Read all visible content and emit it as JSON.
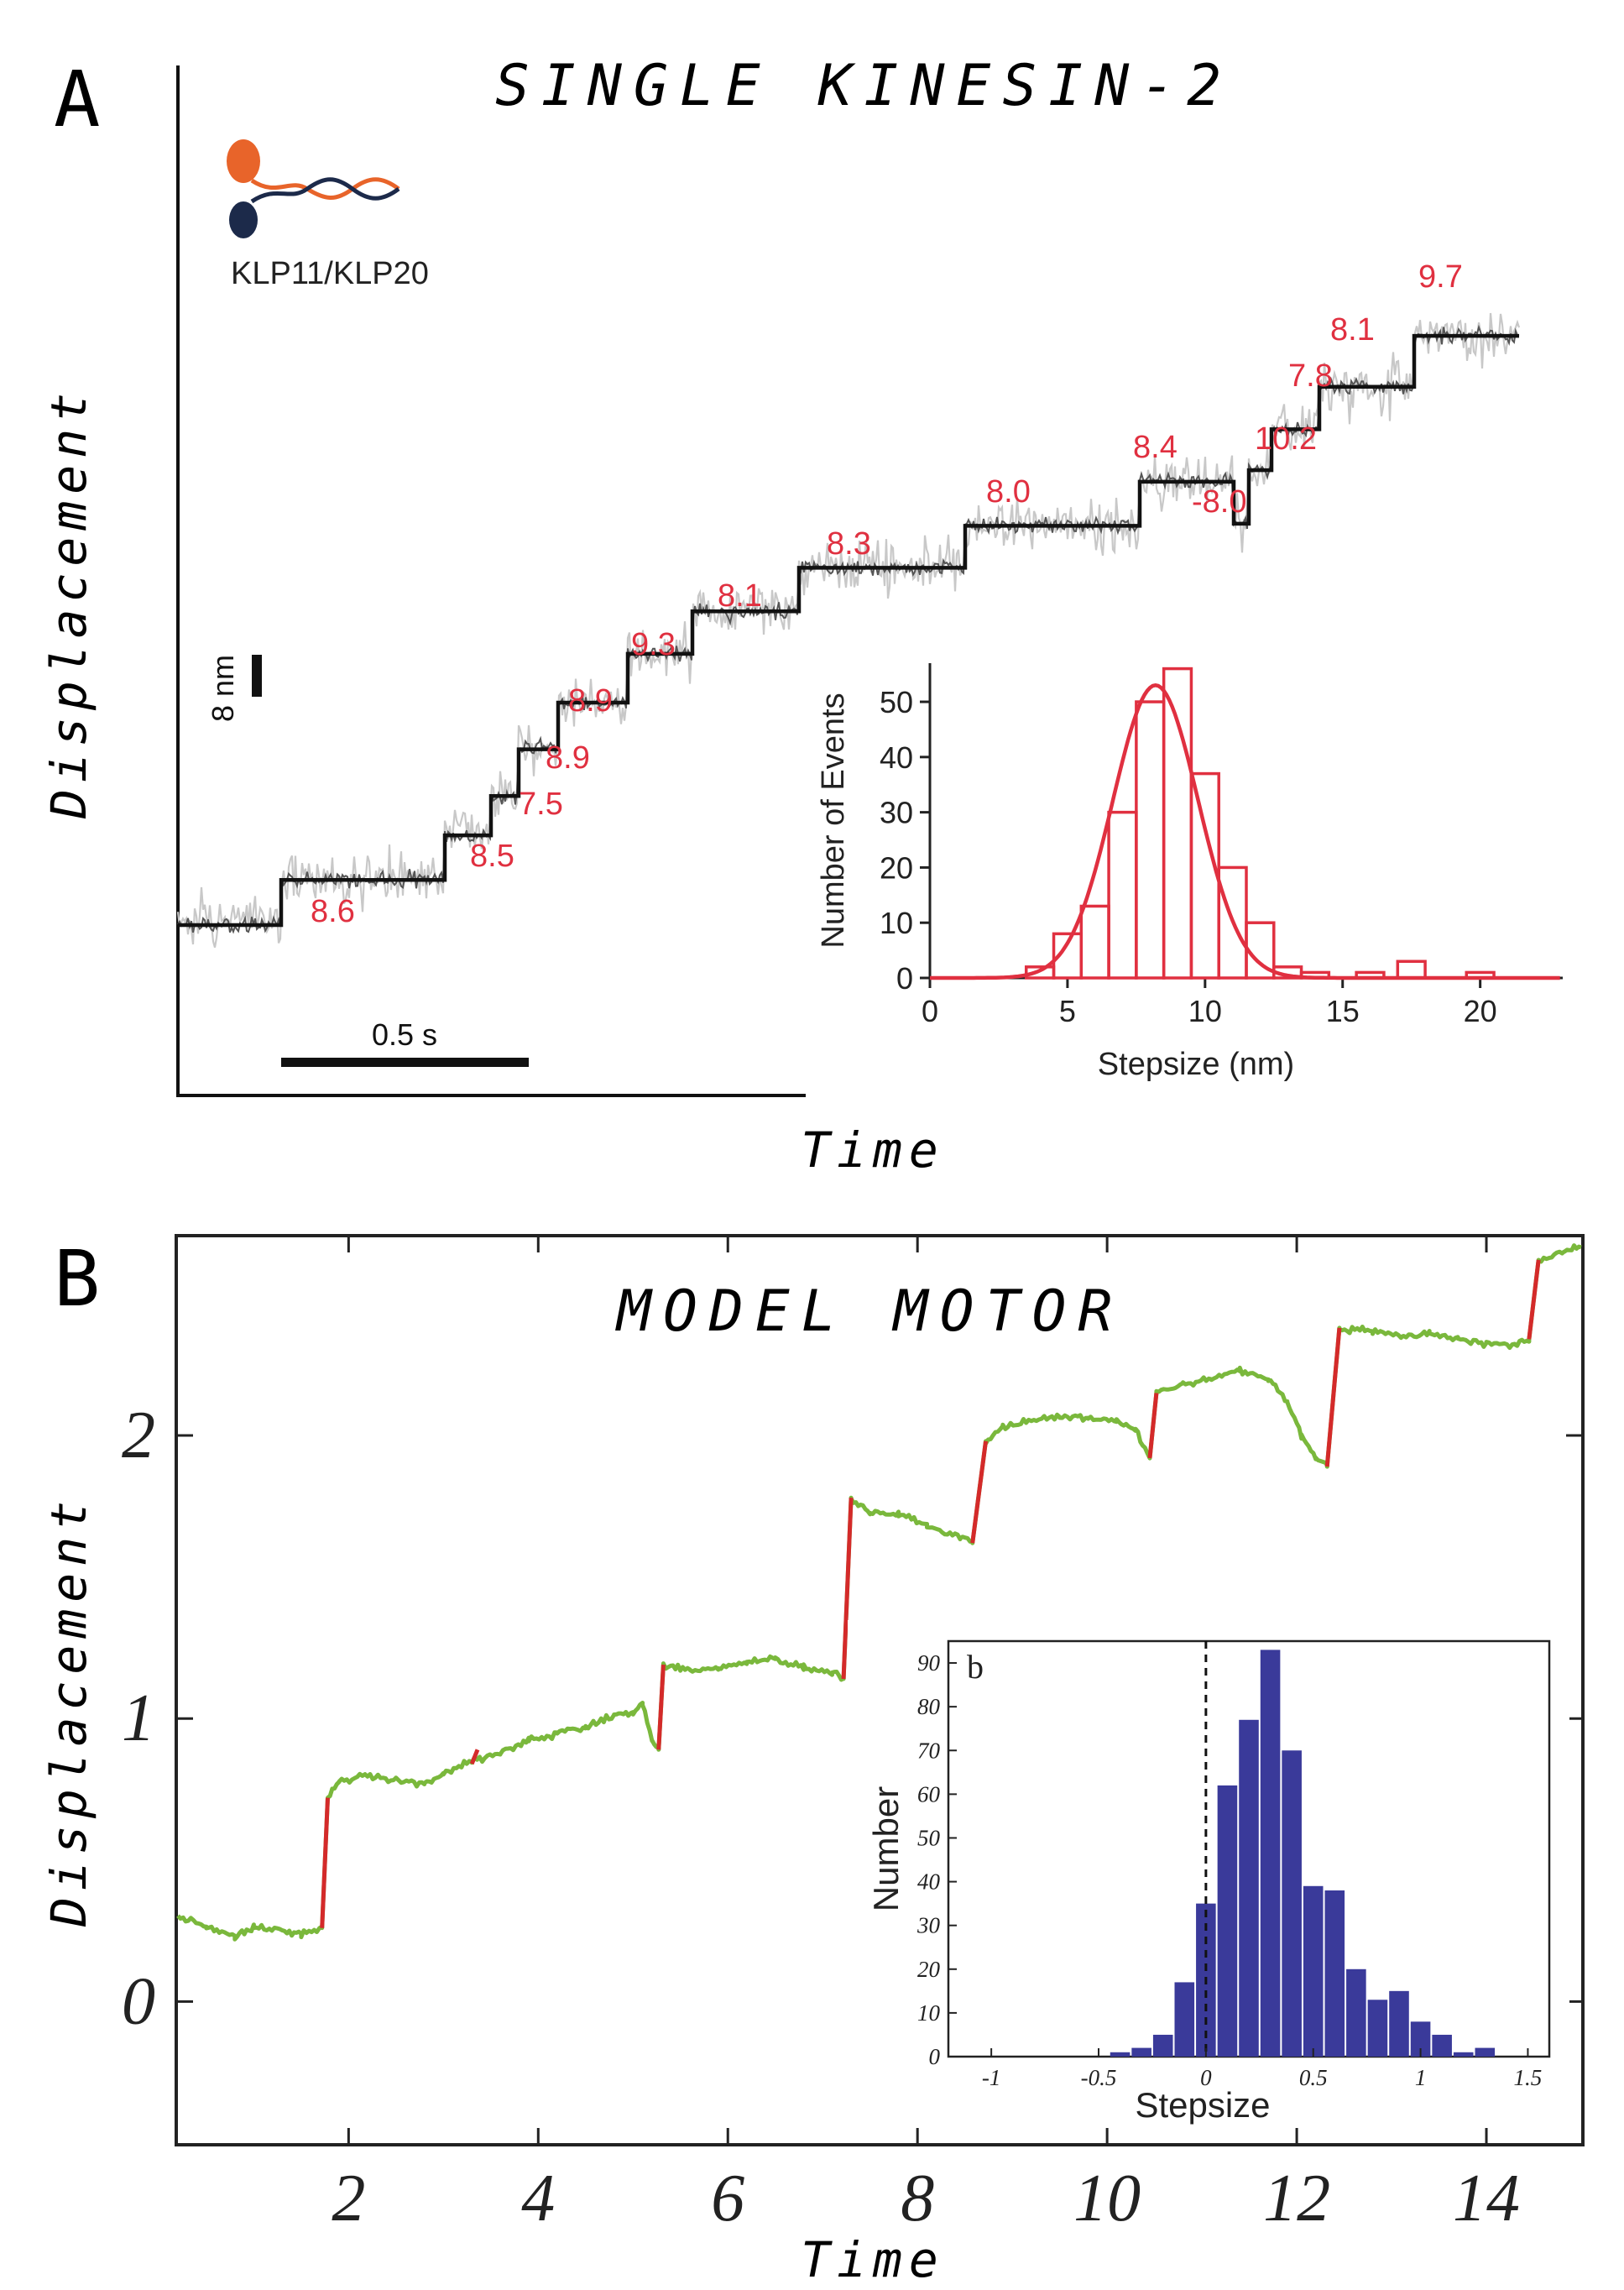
{
  "panelA": {
    "letter": "A",
    "title": "SINGLE KINESIN-2",
    "ylabel": "Displacement",
    "xlabel": "Time",
    "molecule_label": "KLP11/KLP20",
    "scale_y_label": "8 nm",
    "scale_x_label": "0.5 s",
    "colors": {
      "raw": "#c8c8c8",
      "filtered": "#555555",
      "fit": "#111111",
      "accent": "#e03040",
      "head1": "#e8642a",
      "head2": "#1c2a4a"
    },
    "chart_data": {
      "type": "line",
      "description_units": "nm",
      "step_labels": [
        "8.6",
        "8.5",
        "7.5",
        "8.9",
        "8.9",
        "9.3",
        "8.1",
        "8.3",
        "8.0",
        "8.4",
        "-8.0",
        "10.2",
        "7.8",
        "8.1",
        "9.7"
      ],
      "step_sizes_nm": [
        8.6,
        8.5,
        7.5,
        8.9,
        8.9,
        9.3,
        8.1,
        8.3,
        8.0,
        8.4,
        -8.0,
        10.2,
        7.8,
        8.1,
        9.7
      ]
    },
    "inset": {
      "chart_data": {
        "type": "bar",
        "xlabel": "Stepsize (nm)",
        "ylabel": "Number of Events",
        "xlim": [
          0,
          23
        ],
        "ylim": [
          0,
          57
        ],
        "xticks": [
          "0",
          "5",
          "10",
          "15",
          "20"
        ],
        "yticks": [
          "0",
          "10",
          "20",
          "30",
          "40",
          "50"
        ],
        "bin_width": 1,
        "bins": [
          {
            "x": 4,
            "count": 2
          },
          {
            "x": 5,
            "count": 8
          },
          {
            "x": 6,
            "count": 13
          },
          {
            "x": 7,
            "count": 30
          },
          {
            "x": 8,
            "count": 50
          },
          {
            "x": 9,
            "count": 56
          },
          {
            "x": 10,
            "count": 37
          },
          {
            "x": 11,
            "count": 20
          },
          {
            "x": 12,
            "count": 10
          },
          {
            "x": 13,
            "count": 2
          },
          {
            "x": 14,
            "count": 1
          },
          {
            "x": 16,
            "count": 1
          },
          {
            "x": 17.5,
            "count": 3
          },
          {
            "x": 20,
            "count": 1
          }
        ],
        "fit": {
          "type": "gaussian",
          "mean": 8.2,
          "sigma": 1.55,
          "amplitude": 53
        }
      }
    }
  },
  "panelB": {
    "letter": "B",
    "title": "MODEL MOTOR",
    "ylabel": "Displacement",
    "xlabel": "Time",
    "colors": {
      "trace": "#7ab83c",
      "step": "#d42a2a",
      "bars": "#3a3a9a"
    },
    "chart_data": {
      "type": "line",
      "xlim": [
        0.2,
        15
      ],
      "ylim": [
        -0.5,
        2.7
      ],
      "xticks": [
        "2",
        "4",
        "6",
        "8",
        "10",
        "12",
        "14"
      ],
      "yticks": [
        "0",
        "1",
        "2"
      ],
      "trace_points": [
        [
          0.2,
          0.3
        ],
        [
          0.5,
          0.26
        ],
        [
          0.8,
          0.23
        ],
        [
          1.0,
          0.26
        ],
        [
          1.3,
          0.25
        ],
        [
          1.5,
          0.24
        ],
        [
          1.72,
          0.26
        ],
        [
          1.78,
          0.72
        ],
        [
          1.9,
          0.78
        ],
        [
          2.2,
          0.8
        ],
        [
          2.5,
          0.78
        ],
        [
          2.8,
          0.77
        ],
        [
          3.0,
          0.8
        ],
        [
          3.3,
          0.85
        ],
        [
          3.6,
          0.88
        ],
        [
          3.9,
          0.92
        ],
        [
          4.2,
          0.95
        ],
        [
          4.5,
          0.97
        ],
        [
          4.8,
          1.01
        ],
        [
          5.0,
          1.02
        ],
        [
          5.1,
          1.05
        ],
        [
          5.2,
          0.93
        ],
        [
          5.27,
          0.89
        ],
        [
          5.32,
          1.19
        ],
        [
          5.6,
          1.17
        ],
        [
          5.9,
          1.18
        ],
        [
          6.2,
          1.2
        ],
        [
          6.5,
          1.21
        ],
        [
          6.8,
          1.18
        ],
        [
          7.1,
          1.16
        ],
        [
          7.22,
          1.14
        ],
        [
          7.3,
          1.78
        ],
        [
          7.5,
          1.73
        ],
        [
          7.8,
          1.72
        ],
        [
          8.1,
          1.68
        ],
        [
          8.45,
          1.64
        ],
        [
          8.58,
          1.62
        ],
        [
          8.72,
          1.98
        ],
        [
          8.9,
          2.03
        ],
        [
          9.2,
          2.05
        ],
        [
          9.5,
          2.07
        ],
        [
          9.8,
          2.06
        ],
        [
          10.1,
          2.05
        ],
        [
          10.3,
          2.02
        ],
        [
          10.45,
          1.92
        ],
        [
          10.52,
          2.15
        ],
        [
          10.8,
          2.18
        ],
        [
          11.1,
          2.2
        ],
        [
          11.4,
          2.23
        ],
        [
          11.7,
          2.2
        ],
        [
          11.9,
          2.12
        ],
        [
          12.05,
          2.0
        ],
        [
          12.2,
          1.92
        ],
        [
          12.32,
          1.89
        ],
        [
          12.45,
          2.38
        ],
        [
          12.8,
          2.37
        ],
        [
          13.1,
          2.35
        ],
        [
          13.4,
          2.36
        ],
        [
          13.7,
          2.34
        ],
        [
          14.0,
          2.33
        ],
        [
          14.3,
          2.32
        ],
        [
          14.45,
          2.34
        ],
        [
          14.55,
          2.62
        ],
        [
          14.8,
          2.65
        ],
        [
          15.0,
          2.67
        ]
      ],
      "step_segments": [
        [
          1.72,
          0.26,
          1.78,
          0.72
        ],
        [
          3.3,
          0.84,
          3.36,
          0.89
        ],
        [
          5.27,
          0.89,
          5.32,
          1.19
        ],
        [
          7.22,
          1.14,
          7.3,
          1.78
        ],
        [
          8.58,
          1.62,
          8.72,
          1.98
        ],
        [
          10.45,
          1.92,
          10.52,
          2.15
        ],
        [
          12.32,
          1.89,
          12.45,
          2.38
        ],
        [
          14.45,
          2.34,
          14.55,
          2.62
        ]
      ]
    },
    "inset": {
      "label": "b",
      "chart_data": {
        "type": "bar",
        "xlabel": "Stepsize",
        "ylabel": "Number",
        "xlim": [
          -1.2,
          1.6
        ],
        "ylim": [
          0,
          95
        ],
        "xticks": [
          "-1",
          "-0.5",
          "0",
          "0.5",
          "1",
          "1.5"
        ],
        "yticks": [
          "0",
          "10",
          "20",
          "30",
          "40",
          "50",
          "60",
          "70",
          "80",
          "90"
        ],
        "bin_width": 0.1,
        "bars": [
          {
            "x": -0.4,
            "count": 1
          },
          {
            "x": -0.3,
            "count": 2
          },
          {
            "x": -0.2,
            "count": 5
          },
          {
            "x": -0.1,
            "count": 17
          },
          {
            "x": 0.0,
            "count": 35
          },
          {
            "x": 0.1,
            "count": 62
          },
          {
            "x": 0.2,
            "count": 77
          },
          {
            "x": 0.3,
            "count": 93
          },
          {
            "x": 0.4,
            "count": 70
          },
          {
            "x": 0.5,
            "count": 39
          },
          {
            "x": 0.6,
            "count": 38
          },
          {
            "x": 0.7,
            "count": 20
          },
          {
            "x": 0.8,
            "count": 13
          },
          {
            "x": 0.9,
            "count": 15
          },
          {
            "x": 1.0,
            "count": 8
          },
          {
            "x": 1.1,
            "count": 5
          },
          {
            "x": 1.2,
            "count": 1
          },
          {
            "x": 1.3,
            "count": 2
          }
        ],
        "reference_line": 0
      }
    }
  }
}
